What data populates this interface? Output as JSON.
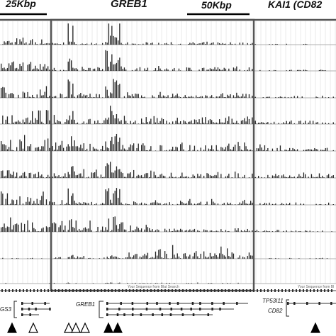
{
  "figure": {
    "scale_bars": [
      {
        "label": "25Kbp"
      },
      {
        "label": "50Kbp"
      }
    ],
    "gene_titles": [
      {
        "label": "GREB1"
      },
      {
        "label": "KAI1 (CD82"
      }
    ],
    "gene_model_labels": [
      {
        "label": "GS3"
      },
      {
        "label": "GREB1"
      },
      {
        "label": "TP53I11"
      },
      {
        "label": "CD82"
      }
    ],
    "sequence_captions": [
      {
        "label": "Your Sequence from Blat Search"
      },
      {
        "label": "Your Sequence from Bl"
      }
    ],
    "track_count": 11,
    "markers": [
      {
        "style": "filled"
      },
      {
        "style": "open"
      },
      {
        "style": "open"
      },
      {
        "style": "open"
      },
      {
        "style": "open"
      },
      {
        "style": "filled"
      },
      {
        "style": "filled"
      },
      {
        "style": "filled"
      }
    ],
    "colors": {
      "bars": "#222222",
      "panel_border": "#555555",
      "grid": "#cccccc",
      "baseline": "#999999"
    }
  }
}
